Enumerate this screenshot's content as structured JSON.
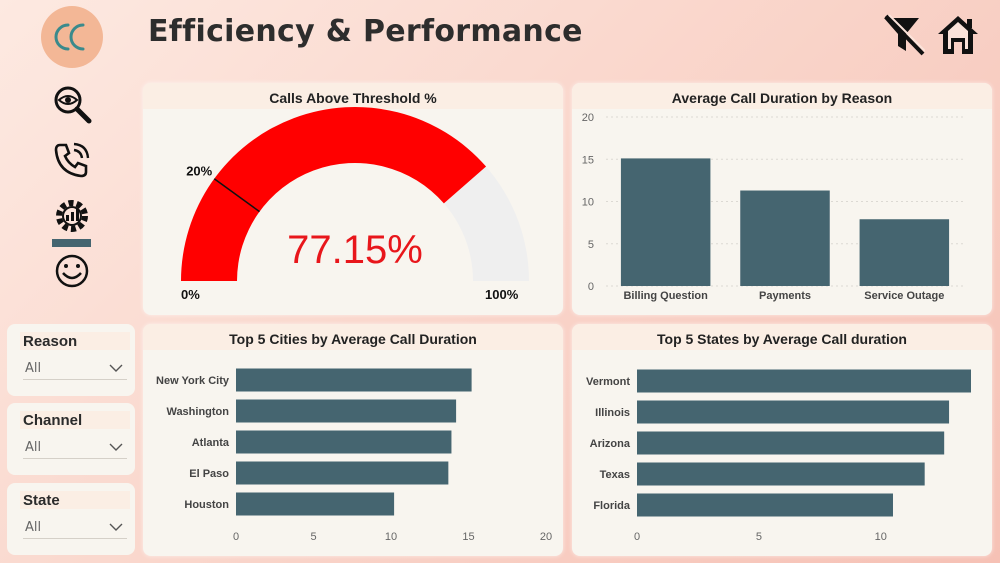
{
  "header": {
    "logo_text": "CC",
    "title": "Efficiency & Performance"
  },
  "icons": {
    "logo": "cc-logo",
    "clear_filter": "filter-off-icon",
    "home": "home-icon",
    "nav": [
      "magnifier-eye-icon",
      "phone-call-icon",
      "gear-chart-icon",
      "smiley-icon"
    ]
  },
  "colors": {
    "bar": "#456570",
    "gauge_fill": "#ff0000",
    "gauge_track": "#efefef",
    "value_text": "#e8161b"
  },
  "slicers": [
    {
      "label": "Reason",
      "value": "All"
    },
    {
      "label": "Channel",
      "value": "All"
    },
    {
      "label": "State",
      "value": "All"
    }
  ],
  "gauge": {
    "title": "Calls Above Threshold %",
    "value_text": "77.15%",
    "value": 77.15,
    "min_label": "0%",
    "max_label": "100%",
    "target_label": "20%",
    "min": 0,
    "max": 100,
    "target": 20
  },
  "chart_data": [
    {
      "type": "bar",
      "title": "Average Call Duration by Reason",
      "categories": [
        "Billing Question",
        "Payments",
        "Service Outage"
      ],
      "values": [
        15.1,
        11.3,
        7.9
      ],
      "ylim": [
        0,
        20
      ],
      "yticks": [
        "0",
        "5",
        "10",
        "15",
        "20"
      ],
      "grid": true
    },
    {
      "type": "bar",
      "orientation": "horizontal",
      "title": "Top 5 Cities by Average Call Duration",
      "categories": [
        "New York City",
        "Washington",
        "Atlanta",
        "El Paso",
        "Houston"
      ],
      "values": [
        15.2,
        14.2,
        13.9,
        13.7,
        10.2
      ],
      "xlim": [
        0,
        20
      ],
      "xticks": [
        "0",
        "5",
        "10",
        "15",
        "20"
      ]
    },
    {
      "type": "bar",
      "orientation": "horizontal",
      "title": "Top 5 States by Average Call duration",
      "categories": [
        "Vermont",
        "Illinois",
        "Arizona",
        "Texas",
        "Florida"
      ],
      "values": [
        13.7,
        12.8,
        12.6,
        11.8,
        10.5
      ],
      "xlim": [
        0,
        13.7
      ],
      "xticks": [
        "0",
        "5",
        "10"
      ]
    }
  ]
}
